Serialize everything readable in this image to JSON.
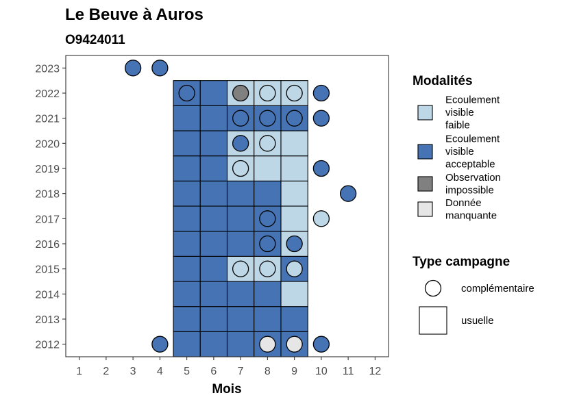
{
  "title": "Le Beuve à Auros",
  "subtitle": "O9424011",
  "colors": {
    "faible": "#BDD7E7",
    "acceptable": "#4573B4",
    "impossible": "#808080",
    "manquante": "#E6E6E6"
  },
  "legend_modalites": {
    "title": "Modalités",
    "items": [
      {
        "key": "faible",
        "label_lines": [
          "Ecoulement",
          "visible",
          "faible"
        ]
      },
      {
        "key": "acceptable",
        "label_lines": [
          "Ecoulement",
          "visible",
          "acceptable"
        ]
      },
      {
        "key": "impossible",
        "label_lines": [
          "Observation",
          "impossible"
        ]
      },
      {
        "key": "manquante",
        "label_lines": [
          "Donnée",
          "manquante"
        ]
      }
    ]
  },
  "legend_campagne": {
    "title": "Type campagne",
    "items": [
      {
        "key": "complementaire",
        "label": "complémentaire"
      },
      {
        "key": "usuelle",
        "label": "usuelle"
      }
    ]
  },
  "chart_data": {
    "type": "heatmap",
    "title": "Le Beuve à Auros",
    "subtitle": "O9424011",
    "xlabel": "Mois",
    "ylabel": "",
    "x_ticks": [
      1,
      2,
      3,
      4,
      5,
      6,
      7,
      8,
      9,
      10,
      11,
      12
    ],
    "y_ticks": [
      2012,
      2013,
      2014,
      2015,
      2016,
      2017,
      2018,
      2019,
      2020,
      2021,
      2022,
      2023
    ],
    "usuelle_months": [
      5,
      6,
      7,
      8,
      9
    ],
    "usuelle": {
      "2012": [
        "acceptable",
        "acceptable",
        "acceptable",
        "acceptable",
        "acceptable"
      ],
      "2013": [
        "acceptable",
        "acceptable",
        "acceptable",
        "acceptable",
        "acceptable"
      ],
      "2014": [
        "acceptable",
        "acceptable",
        "acceptable",
        "acceptable",
        "faible"
      ],
      "2015": [
        "acceptable",
        "acceptable",
        "faible",
        "faible",
        "acceptable"
      ],
      "2016": [
        "acceptable",
        "acceptable",
        "acceptable",
        "acceptable",
        "faible"
      ],
      "2017": [
        "acceptable",
        "acceptable",
        "acceptable",
        "acceptable",
        "faible"
      ],
      "2018": [
        "acceptable",
        "acceptable",
        "acceptable",
        "acceptable",
        "faible"
      ],
      "2019": [
        "acceptable",
        "acceptable",
        "faible",
        "faible",
        "faible"
      ],
      "2020": [
        "acceptable",
        "acceptable",
        "faible",
        "faible",
        "faible"
      ],
      "2021": [
        "acceptable",
        "acceptable",
        "acceptable",
        "acceptable",
        "acceptable"
      ],
      "2022": [
        "acceptable",
        "acceptable",
        "faible",
        "faible",
        "faible"
      ]
    },
    "complementaire": [
      {
        "year": 2023,
        "month": 3,
        "value": "acceptable"
      },
      {
        "year": 2023,
        "month": 4,
        "value": "acceptable"
      },
      {
        "year": 2022,
        "month": 5,
        "value": "acceptable"
      },
      {
        "year": 2022,
        "month": 7,
        "value": "impossible"
      },
      {
        "year": 2022,
        "month": 8,
        "value": "faible"
      },
      {
        "year": 2022,
        "month": 9,
        "value": "faible"
      },
      {
        "year": 2022,
        "month": 10,
        "value": "acceptable"
      },
      {
        "year": 2021,
        "month": 7,
        "value": "acceptable"
      },
      {
        "year": 2021,
        "month": 8,
        "value": "acceptable"
      },
      {
        "year": 2021,
        "month": 9,
        "value": "acceptable"
      },
      {
        "year": 2021,
        "month": 10,
        "value": "acceptable"
      },
      {
        "year": 2020,
        "month": 7,
        "value": "acceptable"
      },
      {
        "year": 2020,
        "month": 8,
        "value": "faible"
      },
      {
        "year": 2019,
        "month": 7,
        "value": "faible"
      },
      {
        "year": 2019,
        "month": 10,
        "value": "acceptable"
      },
      {
        "year": 2018,
        "month": 11,
        "value": "acceptable"
      },
      {
        "year": 2017,
        "month": 8,
        "value": "acceptable"
      },
      {
        "year": 2017,
        "month": 10,
        "value": "faible"
      },
      {
        "year": 2016,
        "month": 8,
        "value": "acceptable"
      },
      {
        "year": 2016,
        "month": 9,
        "value": "acceptable"
      },
      {
        "year": 2015,
        "month": 7,
        "value": "faible"
      },
      {
        "year": 2015,
        "month": 8,
        "value": "faible"
      },
      {
        "year": 2015,
        "month": 9,
        "value": "faible"
      },
      {
        "year": 2012,
        "month": 4,
        "value": "acceptable"
      },
      {
        "year": 2012,
        "month": 8,
        "value": "manquante"
      },
      {
        "year": 2012,
        "month": 9,
        "value": "manquante"
      },
      {
        "year": 2012,
        "month": 10,
        "value": "acceptable"
      }
    ],
    "xlim": [
      0.5,
      12.5
    ],
    "ylim": [
      2011.5,
      2023.5
    ],
    "grid": false,
    "legend_position": "right"
  }
}
